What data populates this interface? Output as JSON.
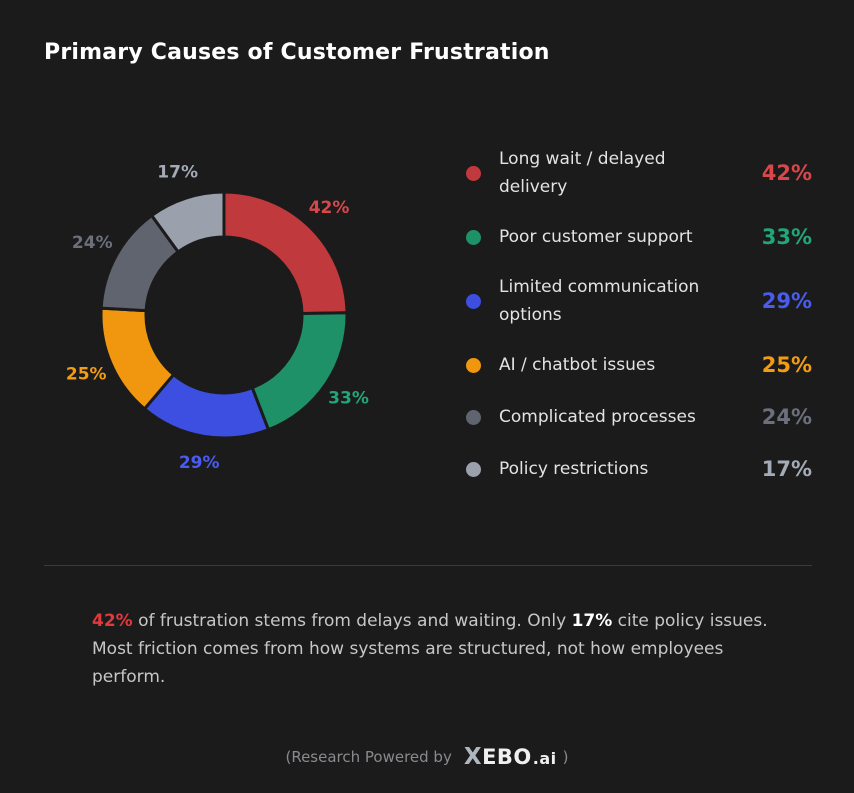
{
  "page": {
    "title": "Primary Causes of Customer Frustration"
  },
  "chart_data": {
    "type": "pie",
    "categories": [
      "Long wait / delayed delivery",
      "Poor customer support",
      "Limited communication options",
      "AI / chatbot issues",
      "Complicated processes",
      "Policy restrictions"
    ],
    "values": [
      42,
      33,
      29,
      25,
      24,
      17
    ],
    "value_labels": [
      "42%",
      "33%",
      "29%",
      "25%",
      "24%",
      "17%"
    ],
    "colors": [
      "#c0393d",
      "#1e9168",
      "#3d4fe0",
      "#f1960f",
      "#5f646f",
      "#9aa1ac"
    ],
    "label_colors": [
      "#d9474b",
      "#21a677",
      "#4a5cf0",
      "#f39c12",
      "#6b707b",
      "#a4abb6"
    ],
    "legend_position": "right",
    "donut": true
  },
  "summary": {
    "highlight_1": "42%",
    "text_1": " of frustration stems from delays and waiting. Only ",
    "highlight_2": "17%",
    "text_2": " cite policy issues.",
    "line_2": "Most friction comes from how systems are structured, not how employees perform."
  },
  "footer": {
    "prefix": "(Research Powered by",
    "brand_x": "X",
    "brand_name": "EBO",
    "brand_suffix": ".ai",
    "suffix": ")"
  }
}
